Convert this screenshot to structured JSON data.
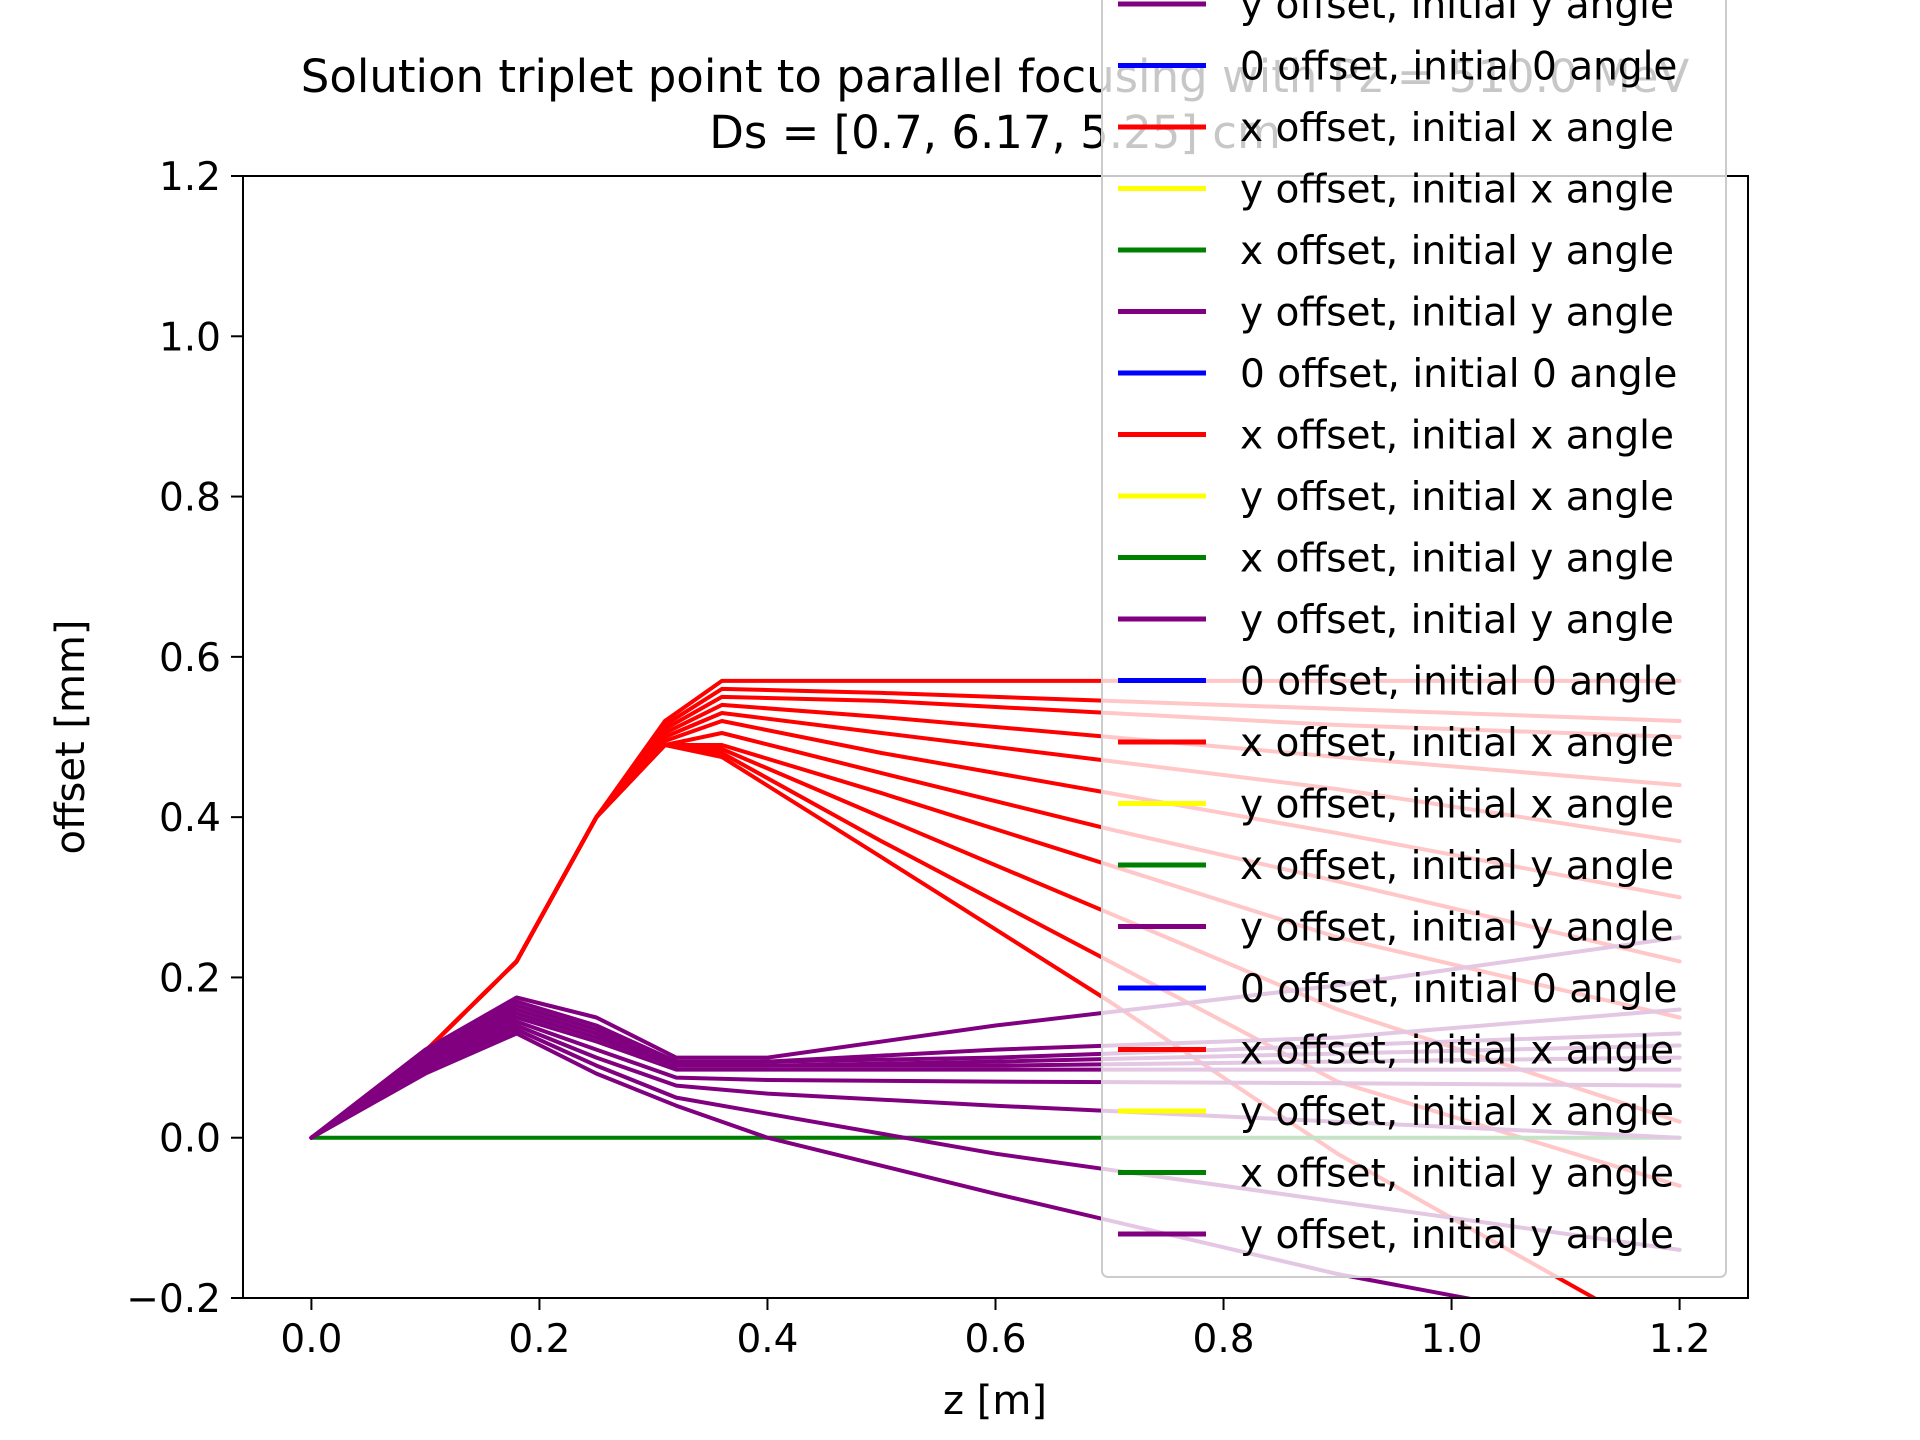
{
  "chart_data": {
    "type": "line",
    "title": "Solution triplet point to parallel focusing with Pz = 510.0 MeV",
    "subtitle": "Ds = [0.7, 6.17, 5.25] cm",
    "xlabel": "z [m]",
    "ylabel": "offset [mm]",
    "xlim": [
      -0.06,
      1.26
    ],
    "ylim": [
      -0.2,
      1.2
    ],
    "x_ticks": [
      "0.0",
      "0.2",
      "0.4",
      "0.6",
      "0.8",
      "1.0",
      "1.2"
    ],
    "y_ticks": [
      "−0.2",
      "0.0",
      "0.2",
      "0.4",
      "0.6",
      "0.8",
      "1.0",
      "1.2"
    ],
    "grid": false,
    "legend_position": "upper-right",
    "colors": {
      "0_offset": "#0000ff",
      "x_offset_x_angle": "#ff0000",
      "y_offset_x_angle": "#ffff00",
      "x_offset_y_angle": "#008000",
      "y_offset_y_angle": "#800080"
    },
    "legend": [
      {
        "label": "y offset, initial y angle",
        "color": "#800080"
      },
      {
        "label": "0 offset, initial 0 angle",
        "color": "#0000ff"
      },
      {
        "label": "x offset, initial x angle",
        "color": "#ff0000"
      },
      {
        "label": "y offset, initial x angle",
        "color": "#ffff00"
      },
      {
        "label": "x offset, initial y angle",
        "color": "#008000"
      },
      {
        "label": "y offset, initial y angle",
        "color": "#800080"
      },
      {
        "label": "0 offset, initial 0 angle",
        "color": "#0000ff"
      },
      {
        "label": "x offset, initial x angle",
        "color": "#ff0000"
      },
      {
        "label": "y offset, initial x angle",
        "color": "#ffff00"
      },
      {
        "label": "x offset, initial y angle",
        "color": "#008000"
      },
      {
        "label": "y offset, initial y angle",
        "color": "#800080"
      },
      {
        "label": "0 offset, initial 0 angle",
        "color": "#0000ff"
      },
      {
        "label": "x offset, initial x angle",
        "color": "#ff0000"
      },
      {
        "label": "y offset, initial x angle",
        "color": "#ffff00"
      },
      {
        "label": "x offset, initial y angle",
        "color": "#008000"
      },
      {
        "label": "y offset, initial y angle",
        "color": "#800080"
      },
      {
        "label": "0 offset, initial 0 angle",
        "color": "#0000ff"
      },
      {
        "label": "x offset, initial x angle",
        "color": "#ff0000"
      },
      {
        "label": "y offset, initial x angle",
        "color": "#ffff00"
      },
      {
        "label": "x offset, initial y angle",
        "color": "#008000"
      },
      {
        "label": "y offset, initial y angle",
        "color": "#800080"
      }
    ],
    "series": [
      {
        "color": "#ff0000",
        "x": [
          0,
          0.08,
          0.18,
          0.25,
          0.31,
          0.36,
          0.5,
          0.7,
          0.9,
          1.2
        ],
        "y": [
          0,
          0.08,
          0.22,
          0.4,
          0.52,
          0.57,
          0.57,
          0.57,
          0.57,
          0.57
        ]
      },
      {
        "color": "#ff0000",
        "x": [
          0,
          0.08,
          0.18,
          0.25,
          0.31,
          0.36,
          0.5,
          0.7,
          0.9,
          1.2
        ],
        "y": [
          0,
          0.08,
          0.22,
          0.4,
          0.515,
          0.56,
          0.555,
          0.545,
          0.535,
          0.52
        ]
      },
      {
        "color": "#ff0000",
        "x": [
          0,
          0.08,
          0.18,
          0.25,
          0.31,
          0.36,
          0.5,
          0.7,
          0.9,
          1.2
        ],
        "y": [
          0,
          0.08,
          0.22,
          0.4,
          0.51,
          0.55,
          0.545,
          0.53,
          0.515,
          0.5
        ]
      },
      {
        "color": "#ff0000",
        "x": [
          0,
          0.08,
          0.18,
          0.25,
          0.31,
          0.36,
          0.5,
          0.7,
          0.9,
          1.2
        ],
        "y": [
          0,
          0.08,
          0.22,
          0.4,
          0.505,
          0.54,
          0.525,
          0.5,
          0.475,
          0.44
        ]
      },
      {
        "color": "#ff0000",
        "x": [
          0,
          0.08,
          0.18,
          0.25,
          0.31,
          0.36,
          0.5,
          0.7,
          0.9,
          1.2
        ],
        "y": [
          0,
          0.08,
          0.22,
          0.4,
          0.5,
          0.53,
          0.505,
          0.47,
          0.435,
          0.37
        ]
      },
      {
        "color": "#ff0000",
        "x": [
          0,
          0.08,
          0.18,
          0.25,
          0.31,
          0.36,
          0.5,
          0.7,
          0.9,
          1.2
        ],
        "y": [
          0,
          0.08,
          0.22,
          0.4,
          0.495,
          0.52,
          0.48,
          0.43,
          0.38,
          0.3
        ]
      },
      {
        "color": "#ff0000",
        "x": [
          0,
          0.08,
          0.18,
          0.25,
          0.31,
          0.36,
          0.5,
          0.7,
          0.9,
          1.2
        ],
        "y": [
          0,
          0.08,
          0.22,
          0.4,
          0.49,
          0.505,
          0.455,
          0.385,
          0.32,
          0.22
        ]
      },
      {
        "color": "#ff0000",
        "x": [
          0,
          0.08,
          0.18,
          0.25,
          0.31,
          0.36,
          0.5,
          0.7,
          0.9,
          1.2
        ],
        "y": [
          0,
          0.08,
          0.22,
          0.4,
          0.49,
          0.49,
          0.43,
          0.34,
          0.25,
          0.15
        ]
      },
      {
        "color": "#ff0000",
        "x": [
          0,
          0.08,
          0.18,
          0.25,
          0.31,
          0.36,
          0.5,
          0.7,
          0.9,
          1.2
        ],
        "y": [
          0,
          0.08,
          0.22,
          0.4,
          0.49,
          0.485,
          0.4,
          0.28,
          0.16,
          0.02
        ]
      },
      {
        "color": "#ff0000",
        "x": [
          0,
          0.08,
          0.18,
          0.25,
          0.31,
          0.36,
          0.5,
          0.7,
          0.9,
          1.2
        ],
        "y": [
          0,
          0.08,
          0.22,
          0.4,
          0.49,
          0.48,
          0.37,
          0.22,
          0.07,
          -0.06
        ]
      },
      {
        "color": "#ff0000",
        "x": [
          0,
          0.08,
          0.18,
          0.25,
          0.31,
          0.36,
          0.5,
          0.7,
          0.9,
          1.2
        ],
        "y": [
          0,
          0.08,
          0.22,
          0.4,
          0.49,
          0.475,
          0.35,
          0.17,
          -0.02,
          -0.26
        ]
      },
      {
        "color": "#008000",
        "x": [
          0,
          1.2
        ],
        "y": [
          0,
          0
        ]
      },
      {
        "color": "#800080",
        "x": [
          0,
          0.1,
          0.18,
          0.25,
          0.32,
          0.4,
          0.6,
          0.9,
          1.2
        ],
        "y": [
          0,
          0.11,
          0.175,
          0.15,
          0.1,
          0.1,
          0.14,
          0.19,
          0.25
        ]
      },
      {
        "color": "#800080",
        "x": [
          0,
          0.1,
          0.18,
          0.25,
          0.32,
          0.4,
          0.6,
          0.9,
          1.2
        ],
        "y": [
          0,
          0.105,
          0.17,
          0.14,
          0.095,
          0.095,
          0.11,
          0.125,
          0.16
        ]
      },
      {
        "color": "#800080",
        "x": [
          0,
          0.1,
          0.18,
          0.25,
          0.32,
          0.4,
          0.6,
          0.9,
          1.2
        ],
        "y": [
          0,
          0.1,
          0.165,
          0.135,
          0.09,
          0.095,
          0.1,
          0.115,
          0.13
        ]
      },
      {
        "color": "#800080",
        "x": [
          0,
          0.1,
          0.18,
          0.25,
          0.32,
          0.4,
          0.6,
          0.9,
          1.2
        ],
        "y": [
          0,
          0.1,
          0.16,
          0.13,
          0.09,
          0.09,
          0.095,
          0.105,
          0.115
        ]
      },
      {
        "color": "#800080",
        "x": [
          0,
          0.1,
          0.18,
          0.25,
          0.32,
          0.4,
          0.6,
          0.9,
          1.2
        ],
        "y": [
          0,
          0.095,
          0.155,
          0.125,
          0.09,
          0.09,
          0.09,
          0.095,
          0.1
        ]
      },
      {
        "color": "#800080",
        "x": [
          0,
          0.1,
          0.18,
          0.25,
          0.32,
          0.4,
          0.6,
          0.9,
          1.2
        ],
        "y": [
          0,
          0.09,
          0.15,
          0.12,
          0.085,
          0.085,
          0.085,
          0.085,
          0.085
        ]
      },
      {
        "color": "#800080",
        "x": [
          0,
          0.1,
          0.18,
          0.25,
          0.32,
          0.4,
          0.6,
          0.9,
          1.2
        ],
        "y": [
          0,
          0.09,
          0.145,
          0.11,
          0.075,
          0.072,
          0.07,
          0.068,
          0.065
        ]
      },
      {
        "color": "#800080",
        "x": [
          0,
          0.1,
          0.18,
          0.25,
          0.32,
          0.4,
          0.6,
          0.9,
          1.2
        ],
        "y": [
          0,
          0.085,
          0.14,
          0.1,
          0.065,
          0.055,
          0.04,
          0.02,
          0.0
        ]
      },
      {
        "color": "#800080",
        "x": [
          0,
          0.1,
          0.18,
          0.25,
          0.32,
          0.4,
          0.6,
          0.9,
          1.2
        ],
        "y": [
          0,
          0.085,
          0.135,
          0.09,
          0.05,
          0.03,
          -0.02,
          -0.08,
          -0.14
        ]
      },
      {
        "color": "#800080",
        "x": [
          0,
          0.1,
          0.18,
          0.25,
          0.32,
          0.4,
          0.6,
          0.9,
          1.2
        ],
        "y": [
          0,
          0.08,
          0.13,
          0.08,
          0.04,
          0.0,
          -0.07,
          -0.17,
          -0.25
        ]
      }
    ]
  }
}
